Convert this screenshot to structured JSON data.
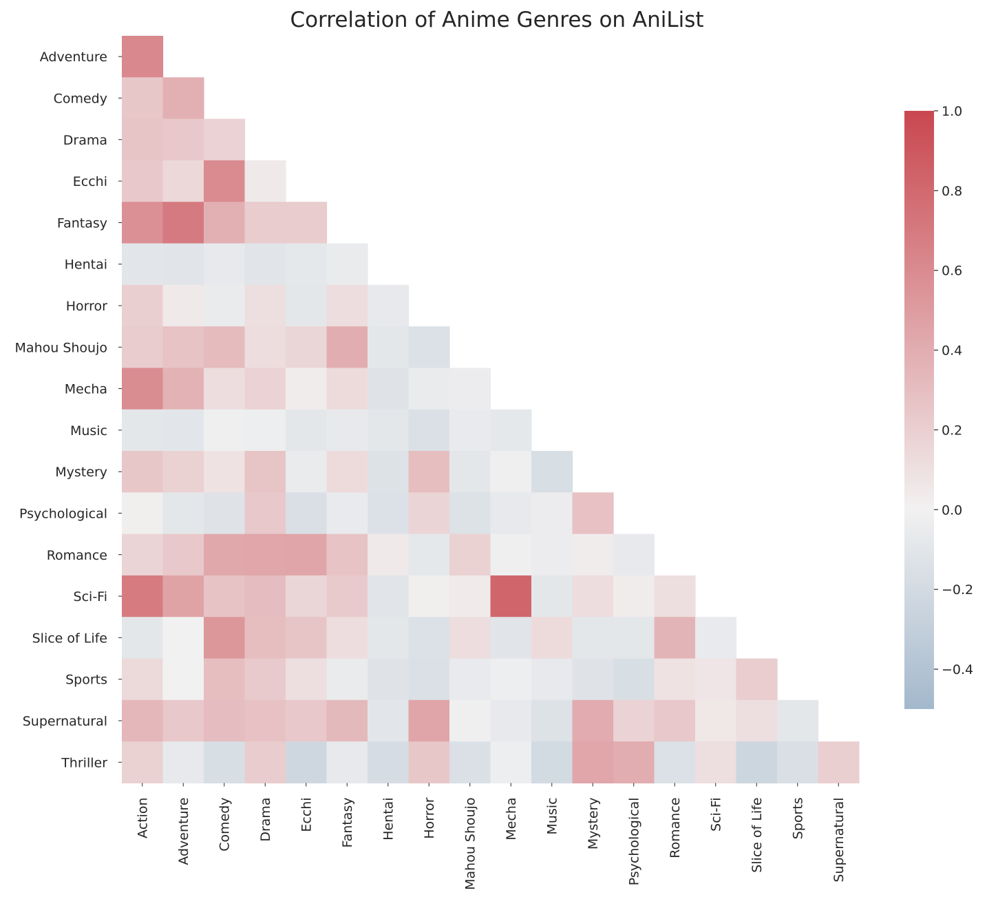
{
  "chart_data": {
    "type": "heatmap",
    "title": "Correlation of Anime Genres on AniList",
    "xlabel": "",
    "ylabel": "",
    "x_categories": [
      "Action",
      "Adventure",
      "Comedy",
      "Drama",
      "Ecchi",
      "Fantasy",
      "Hentai",
      "Horror",
      "Mahou Shoujo",
      "Mecha",
      "Music",
      "Mystery",
      "Psychological",
      "Romance",
      "Sci-Fi",
      "Slice of Life",
      "Sports",
      "Supernatural"
    ],
    "y_categories": [
      "Adventure",
      "Comedy",
      "Drama",
      "Ecchi",
      "Fantasy",
      "Hentai",
      "Horror",
      "Mahou Shoujo",
      "Mecha",
      "Music",
      "Mystery",
      "Psychological",
      "Romance",
      "Sci-Fi",
      "Slice of Life",
      "Sports",
      "Supernatural",
      "Thriller"
    ],
    "values": [
      [
        0.62
      ],
      [
        0.25,
        0.38
      ],
      [
        0.26,
        0.24,
        0.18
      ],
      [
        0.24,
        0.15,
        0.6,
        0.05
      ],
      [
        0.57,
        0.7,
        0.38,
        0.22,
        0.22
      ],
      [
        -0.1,
        -0.11,
        -0.07,
        -0.11,
        -0.08,
        -0.05
      ],
      [
        0.2,
        0.05,
        -0.05,
        0.11,
        -0.09,
        0.12,
        -0.07
      ],
      [
        0.22,
        0.27,
        0.32,
        0.12,
        0.16,
        0.4,
        -0.09,
        -0.14
      ],
      [
        0.59,
        0.37,
        0.12,
        0.18,
        0.03,
        0.13,
        -0.12,
        -0.05,
        -0.04
      ],
      [
        -0.09,
        -0.1,
        -0.02,
        -0.03,
        -0.09,
        -0.07,
        -0.09,
        -0.15,
        -0.06,
        -0.08
      ],
      [
        0.25,
        0.19,
        0.09,
        0.26,
        -0.05,
        0.13,
        -0.13,
        0.3,
        -0.09,
        -0.02,
        -0.17
      ],
      [
        0.02,
        -0.09,
        -0.12,
        0.24,
        -0.16,
        -0.06,
        -0.14,
        0.17,
        -0.13,
        -0.07,
        -0.04,
        0.28
      ],
      [
        0.17,
        0.24,
        0.43,
        0.44,
        0.45,
        0.27,
        0.05,
        -0.08,
        0.19,
        -0.02,
        -0.04,
        0.03,
        -0.07
      ],
      [
        0.69,
        0.46,
        0.27,
        0.31,
        0.16,
        0.23,
        -0.11,
        0.02,
        0.04,
        0.82,
        -0.09,
        0.12,
        0.03,
        0.11
      ],
      [
        -0.09,
        0.0,
        0.53,
        0.3,
        0.26,
        0.12,
        -0.09,
        -0.14,
        0.12,
        -0.11,
        0.13,
        -0.09,
        -0.09,
        0.36,
        -0.06
      ],
      [
        0.14,
        0.0,
        0.3,
        0.23,
        0.11,
        -0.05,
        -0.12,
        -0.15,
        -0.06,
        -0.03,
        -0.07,
        -0.12,
        -0.17,
        0.09,
        0.07,
        0.21
      ],
      [
        0.34,
        0.24,
        0.31,
        0.28,
        0.24,
        0.33,
        -0.1,
        0.45,
        -0.02,
        -0.07,
        -0.13,
        0.41,
        0.18,
        0.24,
        0.06,
        0.11,
        -0.09
      ],
      [
        0.19,
        -0.07,
        -0.17,
        0.22,
        -0.23,
        -0.07,
        -0.18,
        0.25,
        -0.15,
        -0.03,
        -0.2,
        0.44,
        0.4,
        -0.14,
        0.11,
        -0.24,
        -0.16,
        0.2
      ]
    ],
    "colorbar": {
      "min": -0.5,
      "max": 1.0,
      "ticks": [
        -0.4,
        -0.2,
        0.0,
        0.2,
        0.4,
        0.6,
        0.8,
        1.0
      ],
      "tick_labels": [
        "−0.4",
        "−0.2",
        "0.0",
        "0.2",
        "0.4",
        "0.6",
        "0.8",
        "1.0"
      ]
    },
    "colors": {
      "negative": "#a3b8cc",
      "neutral": "#f2f1f1",
      "positive": "#c9474f"
    },
    "grid": false,
    "legend_placement": "right"
  }
}
